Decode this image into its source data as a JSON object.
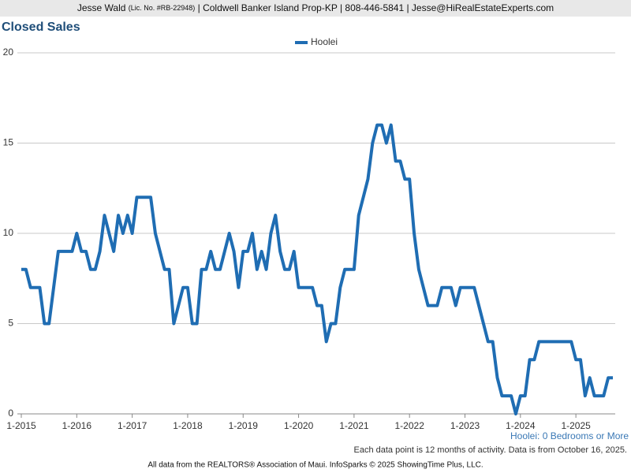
{
  "header": {
    "name": "Jesse Wald",
    "license": "(Lic. No. #RB-22948)",
    "rest": "| Coldwell Banker Island Prop-KP | 808-446-5841 | Jesse@HiRealEstateExperts.com"
  },
  "footer": "All data from the REALTORS® Association of Maui. InfoSparks © 2025 ShowingTime Plus, LLC.",
  "chart_data": {
    "type": "line",
    "title": "Closed Sales",
    "subset_label": "Hoolei: 0 Bedrooms or More",
    "note": "Each data point is 12 months of activity. Data is from October 16, 2025.",
    "categories": [
      "1-2015",
      null,
      null,
      null,
      null,
      null,
      null,
      null,
      null,
      null,
      null,
      null,
      "1-2016",
      null,
      null,
      null,
      null,
      null,
      null,
      null,
      null,
      null,
      null,
      null,
      "1-2017",
      null,
      null,
      null,
      null,
      null,
      null,
      null,
      null,
      null,
      null,
      null,
      "1-2018",
      null,
      null,
      null,
      null,
      null,
      null,
      null,
      null,
      null,
      null,
      null,
      "1-2019",
      null,
      null,
      null,
      null,
      null,
      null,
      null,
      null,
      null,
      null,
      null,
      "1-2020",
      null,
      null,
      null,
      null,
      null,
      null,
      null,
      null,
      null,
      null,
      null,
      "1-2021",
      null,
      null,
      null,
      null,
      null,
      null,
      null,
      null,
      null,
      null,
      null,
      "1-2022",
      null,
      null,
      null,
      null,
      null,
      null,
      null,
      null,
      null,
      null,
      null,
      "1-2023",
      null,
      null,
      null,
      null,
      null,
      null,
      null,
      null,
      null,
      null,
      null,
      "1-2024",
      null,
      null,
      null,
      null,
      null,
      null,
      null,
      null,
      null,
      null,
      null,
      "1-2025",
      null,
      null,
      null,
      null,
      null,
      null,
      null,
      null
    ],
    "series": [
      {
        "name": "Hoolei",
        "color": "#1f6db3",
        "values": [
          8,
          8,
          7,
          7,
          7,
          5,
          5,
          7,
          9,
          9,
          9,
          9,
          10,
          9,
          9,
          8,
          8,
          9,
          11,
          10,
          9,
          11,
          10,
          11,
          10,
          12,
          12,
          12,
          12,
          10,
          9,
          8,
          8,
          5,
          6,
          7,
          7,
          5,
          5,
          8,
          8,
          9,
          8,
          8,
          9,
          10,
          9,
          7,
          9,
          9,
          10,
          8,
          9,
          8,
          10,
          11,
          9,
          8,
          8,
          9,
          7,
          7,
          7,
          7,
          6,
          6,
          4,
          5,
          5,
          7,
          8,
          8,
          8,
          11,
          12,
          13,
          15,
          16,
          16,
          15,
          16,
          14,
          14,
          13,
          13,
          10,
          8,
          7,
          6,
          6,
          6,
          7,
          7,
          7,
          6,
          7,
          7,
          7,
          7,
          6,
          5,
          4,
          4,
          2,
          1,
          1,
          1,
          0,
          1,
          1,
          3,
          3,
          4,
          4,
          4,
          4,
          4,
          4,
          4,
          4,
          3,
          3,
          1,
          2,
          1,
          1,
          1,
          2,
          2
        ]
      }
    ],
    "ylim": [
      0,
      20
    ],
    "yticks": [
      0,
      5,
      10,
      15,
      20
    ],
    "grid": true,
    "legend": "top"
  }
}
